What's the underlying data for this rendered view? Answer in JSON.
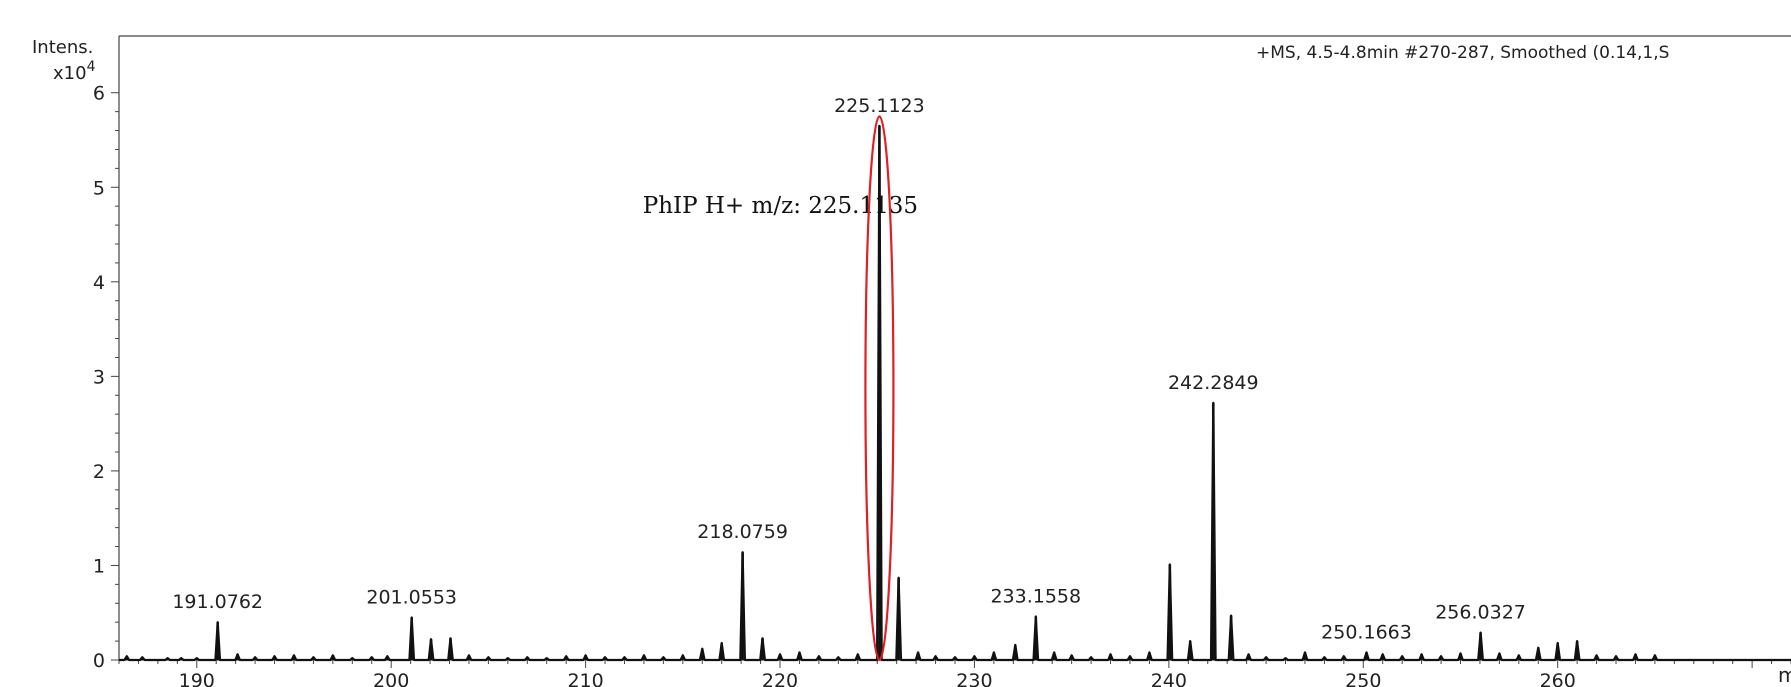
{
  "chart_data": {
    "type": "line",
    "title": "+MS, 4.5-4.8min #270-287, Smoothed (0.14,1,S",
    "ylabel": "Intens.",
    "ylabel_scale": "x10",
    "ylabel_exponent": "4",
    "xlabel": "m",
    "x_unit": "m/z",
    "xlim": [
      186,
      272
    ],
    "ylim": [
      0,
      6.6
    ],
    "y_ticks": [
      0,
      1,
      2,
      3,
      4,
      5,
      6
    ],
    "x_ticks": [
      190,
      200,
      210,
      220,
      230,
      240,
      250,
      260
    ],
    "grid": false,
    "peaks": [
      {
        "x": 186.4,
        "y": 0.04
      },
      {
        "x": 187.2,
        "y": 0.03
      },
      {
        "x": 188.5,
        "y": 0.02
      },
      {
        "x": 189.2,
        "y": 0.02
      },
      {
        "x": 190.0,
        "y": 0.02
      },
      {
        "x": 191.0762,
        "y": 0.4
      },
      {
        "x": 192.1,
        "y": 0.06
      },
      {
        "x": 193.0,
        "y": 0.03
      },
      {
        "x": 194.0,
        "y": 0.04
      },
      {
        "x": 195.0,
        "y": 0.05
      },
      {
        "x": 196.0,
        "y": 0.03
      },
      {
        "x": 197.0,
        "y": 0.05
      },
      {
        "x": 198.0,
        "y": 0.02
      },
      {
        "x": 199.0,
        "y": 0.03
      },
      {
        "x": 199.8,
        "y": 0.04
      },
      {
        "x": 201.0553,
        "y": 0.45
      },
      {
        "x": 202.05,
        "y": 0.22
      },
      {
        "x": 203.05,
        "y": 0.23
      },
      {
        "x": 204.0,
        "y": 0.05
      },
      {
        "x": 205.0,
        "y": 0.03
      },
      {
        "x": 206.0,
        "y": 0.02
      },
      {
        "x": 207.0,
        "y": 0.03
      },
      {
        "x": 208.0,
        "y": 0.02
      },
      {
        "x": 209.0,
        "y": 0.04
      },
      {
        "x": 210.0,
        "y": 0.05
      },
      {
        "x": 211.0,
        "y": 0.03
      },
      {
        "x": 212.0,
        "y": 0.03
      },
      {
        "x": 213.0,
        "y": 0.05
      },
      {
        "x": 214.0,
        "y": 0.03
      },
      {
        "x": 215.0,
        "y": 0.05
      },
      {
        "x": 216.0,
        "y": 0.12
      },
      {
        "x": 217.0,
        "y": 0.18
      },
      {
        "x": 218.0759,
        "y": 1.14
      },
      {
        "x": 219.1,
        "y": 0.23
      },
      {
        "x": 220.0,
        "y": 0.06
      },
      {
        "x": 221.0,
        "y": 0.08
      },
      {
        "x": 222.0,
        "y": 0.04
      },
      {
        "x": 223.0,
        "y": 0.03
      },
      {
        "x": 224.0,
        "y": 0.06
      },
      {
        "x": 225.1123,
        "y": 5.65
      },
      {
        "x": 226.1,
        "y": 0.87
      },
      {
        "x": 227.1,
        "y": 0.08
      },
      {
        "x": 228.0,
        "y": 0.04
      },
      {
        "x": 229.0,
        "y": 0.03
      },
      {
        "x": 230.0,
        "y": 0.04
      },
      {
        "x": 231.0,
        "y": 0.08
      },
      {
        "x": 232.1,
        "y": 0.16
      },
      {
        "x": 233.1558,
        "y": 0.46
      },
      {
        "x": 234.1,
        "y": 0.08
      },
      {
        "x": 235.0,
        "y": 0.05
      },
      {
        "x": 236.0,
        "y": 0.03
      },
      {
        "x": 237.0,
        "y": 0.06
      },
      {
        "x": 238.0,
        "y": 0.04
      },
      {
        "x": 239.0,
        "y": 0.08
      },
      {
        "x": 240.05,
        "y": 1.01
      },
      {
        "x": 241.1,
        "y": 0.2
      },
      {
        "x": 242.2849,
        "y": 2.72
      },
      {
        "x": 243.2,
        "y": 0.47
      },
      {
        "x": 244.1,
        "y": 0.06
      },
      {
        "x": 245.0,
        "y": 0.03
      },
      {
        "x": 246.0,
        "y": 0.02
      },
      {
        "x": 247.0,
        "y": 0.08
      },
      {
        "x": 248.0,
        "y": 0.03
      },
      {
        "x": 249.0,
        "y": 0.04
      },
      {
        "x": 250.1663,
        "y": 0.08
      },
      {
        "x": 251.0,
        "y": 0.06
      },
      {
        "x": 252.0,
        "y": 0.04
      },
      {
        "x": 253.0,
        "y": 0.06
      },
      {
        "x": 254.0,
        "y": 0.04
      },
      {
        "x": 255.0,
        "y": 0.07
      },
      {
        "x": 256.0327,
        "y": 0.29
      },
      {
        "x": 257.0,
        "y": 0.07
      },
      {
        "x": 258.0,
        "y": 0.05
      },
      {
        "x": 259.0,
        "y": 0.13
      },
      {
        "x": 260.0,
        "y": 0.18
      },
      {
        "x": 261.0,
        "y": 0.2
      },
      {
        "x": 262.0,
        "y": 0.05
      },
      {
        "x": 263.0,
        "y": 0.04
      },
      {
        "x": 264.0,
        "y": 0.06
      },
      {
        "x": 265.0,
        "y": 0.05
      }
    ],
    "peak_labels": [
      {
        "label": "191.0762",
        "x": 191.0762,
        "y": 0.4
      },
      {
        "label": "201.0553",
        "x": 201.0553,
        "y": 0.45
      },
      {
        "label": "218.0759",
        "x": 218.0759,
        "y": 1.14
      },
      {
        "label": "225.1123",
        "x": 225.1123,
        "y": 5.65
      },
      {
        "label": "233.1558",
        "x": 233.1558,
        "y": 0.46
      },
      {
        "label": "242.2849",
        "x": 242.2849,
        "y": 2.72
      },
      {
        "label": "250.1663",
        "x": 250.1663,
        "y": 0.08
      },
      {
        "label": "256.0327",
        "x": 256.0327,
        "y": 0.29
      }
    ],
    "annotation": {
      "text": "PhIP H+ m/z: 225.1135",
      "target_x": 225.1123,
      "highlight_color": "#e02020"
    },
    "line_color": "#111111"
  }
}
